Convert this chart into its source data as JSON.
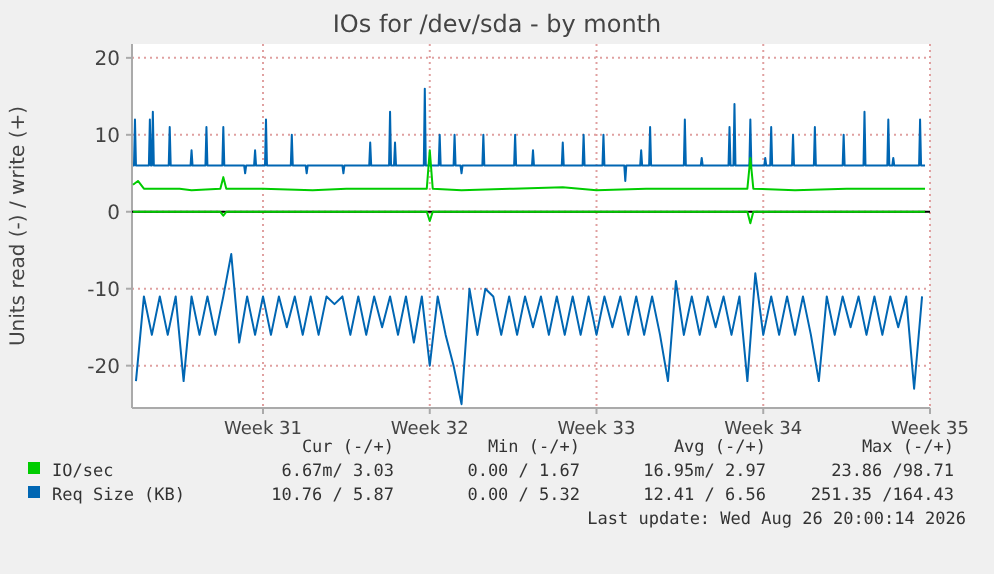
{
  "chart_data": {
    "type": "line",
    "title": "IOs for /dev/sda - by month",
    "ylabel": "Units read (-) / write (+)",
    "xlim": [
      "2026-07-21T12:00",
      "2026-08-24T00:00"
    ],
    "xticks": [
      {
        "value": "2026-07-27",
        "label": "Week 31"
      },
      {
        "value": "2026-08-03",
        "label": "Week 32"
      },
      {
        "value": "2026-08-10",
        "label": "Week 33"
      },
      {
        "value": "2026-08-17",
        "label": "Week 34"
      },
      {
        "value": "2026-08-24",
        "label": "Week 35"
      }
    ],
    "ylim": [
      -25.5,
      21.8
    ],
    "yticks": [
      -20,
      -10,
      0,
      10,
      20
    ],
    "grid": true,
    "legend": "bottom",
    "ref_lines": [
      {
        "axis": "y",
        "value": 0,
        "color": "#000000"
      }
    ],
    "series": [
      {
        "name": "IO/sec",
        "color": "#00cc00",
        "x": [
          "2026-07-21T13:00",
          "2026-07-21T18:00",
          "2026-07-22T00:00",
          "2026-07-23T12:00",
          "2026-07-24T00:00",
          "2026-07-25T05:00",
          "2026-07-25T08:00",
          "2026-07-25T11:00",
          "2026-07-27T00:00",
          "2026-07-29T02:00",
          "2026-07-30T12:00",
          "2026-08-01T16:00",
          "2026-08-02T21:00",
          "2026-08-03T00:00",
          "2026-08-03T03:00",
          "2026-08-04T08:00",
          "2026-08-06T12:00",
          "2026-08-08T14:00",
          "2026-08-10T00:00",
          "2026-08-12T02:00",
          "2026-08-14T05:00",
          "2026-08-16T08:00",
          "2026-08-16T11:00",
          "2026-08-16T14:00",
          "2026-08-18T08:00",
          "2026-08-20T12:00",
          "2026-08-22T14:00",
          "2026-08-23T19:00"
        ],
        "values": [
          3.5,
          4,
          3,
          3,
          2.8,
          3,
          4.5,
          3,
          3,
          2.8,
          3,
          3,
          3,
          8,
          3,
          2.8,
          3,
          3.2,
          2.8,
          3,
          3,
          3,
          7,
          3,
          2.8,
          3,
          3,
          3
        ]
      },
      {
        "color": "#00cc00",
        "x": [
          "2026-07-21T13:00",
          "2026-07-25T05:00",
          "2026-07-25T08:00",
          "2026-07-25T11:00",
          "2026-08-02T21:00",
          "2026-08-03T00:00",
          "2026-08-03T03:00",
          "2026-08-16T08:00",
          "2026-08-16T11:00",
          "2026-08-16T14:00",
          "2026-08-23T19:00"
        ],
        "values": [
          0,
          0,
          -0.5,
          0,
          0,
          -1.2,
          0,
          0,
          -1.5,
          0,
          0
        ]
      },
      {
        "name": "Req Size (KB)",
        "color": "#0066b3",
        "x": [
          "2026-07-21T13:00",
          "2026-07-21T14:00",
          "2026-07-21T15:00",
          "2026-07-21T16:00",
          "2026-07-22T05:00",
          "2026-07-22T06:00",
          "2026-07-22T07:00",
          "2026-07-22T08:00",
          "2026-07-22T09:00",
          "2026-07-22T10:00",
          "2026-07-23T01:00",
          "2026-07-23T02:00",
          "2026-07-23T03:00",
          "2026-07-23T23:00",
          "2026-07-24T00:00",
          "2026-07-24T01:00",
          "2026-07-24T14:00",
          "2026-07-24T15:00",
          "2026-07-24T16:00",
          "2026-07-25T07:00",
          "2026-07-25T08:00",
          "2026-07-25T09:00",
          "2026-07-26T05:00",
          "2026-07-26T06:00",
          "2026-07-26T07:00",
          "2026-07-26T15:00",
          "2026-07-26T16:00",
          "2026-07-26T17:00",
          "2026-07-27T02:00",
          "2026-07-27T03:00",
          "2026-07-27T04:00",
          "2026-07-28T04:00",
          "2026-07-28T05:00",
          "2026-07-28T06:00",
          "2026-07-28T19:00",
          "2026-07-28T20:00",
          "2026-07-28T21:00",
          "2026-07-30T08:00",
          "2026-07-30T09:00",
          "2026-07-30T10:00",
          "2026-07-31T11:00",
          "2026-07-31T12:00",
          "2026-07-31T13:00",
          "2026-08-01T07:00",
          "2026-08-01T08:00",
          "2026-08-01T09:00",
          "2026-08-01T12:00",
          "2026-08-01T13:00",
          "2026-08-01T14:00",
          "2026-08-02T18:00",
          "2026-08-02T19:00",
          "2026-08-02T20:00",
          "2026-08-03T09:00",
          "2026-08-03T10:00",
          "2026-08-03T11:00",
          "2026-08-04T00:00",
          "2026-08-04T01:00",
          "2026-08-04T02:00",
          "2026-08-04T07:00",
          "2026-08-04T08:00",
          "2026-08-04T09:00",
          "2026-08-05T05:00",
          "2026-08-05T06:00",
          "2026-08-05T07:00",
          "2026-08-06T13:00",
          "2026-08-06T14:00",
          "2026-08-06T15:00",
          "2026-08-07T07:00",
          "2026-08-07T08:00",
          "2026-08-07T09:00",
          "2026-08-08T13:00",
          "2026-08-08T14:00",
          "2026-08-08T15:00",
          "2026-08-09T10:00",
          "2026-08-09T11:00",
          "2026-08-09T12:00",
          "2026-08-10T06:00",
          "2026-08-10T07:00",
          "2026-08-10T08:00",
          "2026-08-11T04:00",
          "2026-08-11T05:00",
          "2026-08-11T06:00",
          "2026-08-11T20:00",
          "2026-08-11T21:00",
          "2026-08-11T22:00",
          "2026-08-12T05:00",
          "2026-08-12T06:00",
          "2026-08-12T07:00",
          "2026-08-13T16:00",
          "2026-08-13T17:00",
          "2026-08-13T18:00",
          "2026-08-14T09:00",
          "2026-08-14T10:00",
          "2026-08-14T11:00",
          "2026-08-15T13:00",
          "2026-08-15T14:00",
          "2026-08-15T15:00",
          "2026-08-15T18:00",
          "2026-08-15T19:00",
          "2026-08-15T20:00",
          "2026-08-16T10:00",
          "2026-08-16T11:00",
          "2026-08-16T12:00",
          "2026-08-17T01:00",
          "2026-08-17T02:00",
          "2026-08-17T03:00",
          "2026-08-17T07:00",
          "2026-08-17T08:00",
          "2026-08-17T09:00",
          "2026-08-18T05:00",
          "2026-08-18T06:00",
          "2026-08-18T07:00",
          "2026-08-19T03:00",
          "2026-08-19T04:00",
          "2026-08-19T05:00",
          "2026-08-20T08:00",
          "2026-08-20T09:00",
          "2026-08-20T10:00",
          "2026-08-21T05:00",
          "2026-08-21T06:00",
          "2026-08-21T07:00",
          "2026-08-22T05:00",
          "2026-08-22T06:00",
          "2026-08-22T07:00",
          "2026-08-22T10:00",
          "2026-08-22T11:00",
          "2026-08-22T12:00",
          "2026-08-23T13:00",
          "2026-08-23T14:00",
          "2026-08-23T15:00",
          "2026-08-23T19:00"
        ],
        "values": [
          6,
          6,
          12,
          6,
          6,
          12,
          6,
          6,
          13,
          6,
          6,
          11,
          6,
          6,
          8,
          6,
          6,
          11,
          6,
          6,
          11,
          6,
          6,
          5,
          6,
          6,
          8,
          6,
          6,
          12,
          6,
          6,
          10,
          6,
          6,
          5,
          6,
          6,
          5,
          6,
          6,
          9,
          6,
          6,
          13,
          6,
          6,
          9,
          6,
          6,
          16,
          6,
          6,
          10,
          6,
          6,
          10,
          6,
          6,
          5,
          6,
          6,
          10,
          6,
          6,
          10,
          6,
          6,
          8,
          6,
          6,
          9,
          6,
          6,
          10,
          6,
          6,
          10,
          6,
          6,
          4,
          6,
          6,
          8,
          6,
          6,
          11,
          6,
          6,
          12,
          6,
          6,
          7,
          6,
          6,
          11,
          6,
          6,
          14,
          6,
          6,
          12,
          6,
          6,
          7,
          6,
          6,
          11,
          6,
          6,
          10,
          6,
          6,
          11,
          6,
          6,
          10,
          6,
          6,
          13,
          6,
          6,
          12,
          6,
          6,
          7,
          6,
          6,
          12,
          6,
          6
        ]
      },
      {
        "color": "#0066b3",
        "x": [
          "2026-07-21T16:00",
          "2026-07-22T00:00",
          "2026-07-22T08:00",
          "2026-07-22T16:00",
          "2026-07-23T00:00",
          "2026-07-23T08:00",
          "2026-07-23T16:00",
          "2026-07-24T00:00",
          "2026-07-24T08:00",
          "2026-07-24T16:00",
          "2026-07-25T00:00",
          "2026-07-25T08:00",
          "2026-07-25T16:00",
          "2026-07-26T00:00",
          "2026-07-26T08:00",
          "2026-07-26T16:00",
          "2026-07-27T00:00",
          "2026-07-27T08:00",
          "2026-07-27T16:00",
          "2026-07-28T00:00",
          "2026-07-28T08:00",
          "2026-07-28T16:00",
          "2026-07-29T00:00",
          "2026-07-29T08:00",
          "2026-07-29T16:00",
          "2026-07-30T00:00",
          "2026-07-30T08:00",
          "2026-07-30T16:00",
          "2026-07-31T00:00",
          "2026-07-31T08:00",
          "2026-07-31T16:00",
          "2026-08-01T00:00",
          "2026-08-01T08:00",
          "2026-08-01T16:00",
          "2026-08-02T00:00",
          "2026-08-02T08:00",
          "2026-08-02T16:00",
          "2026-08-03T00:00",
          "2026-08-03T08:00",
          "2026-08-03T16:00",
          "2026-08-04T00:00",
          "2026-08-04T08:00",
          "2026-08-04T16:00",
          "2026-08-05T00:00",
          "2026-08-05T08:00",
          "2026-08-05T16:00",
          "2026-08-06T00:00",
          "2026-08-06T08:00",
          "2026-08-06T16:00",
          "2026-08-07T00:00",
          "2026-08-07T08:00",
          "2026-08-07T16:00",
          "2026-08-08T00:00",
          "2026-08-08T08:00",
          "2026-08-08T16:00",
          "2026-08-09T00:00",
          "2026-08-09T08:00",
          "2026-08-09T16:00",
          "2026-08-10T00:00",
          "2026-08-10T08:00",
          "2026-08-10T16:00",
          "2026-08-11T00:00",
          "2026-08-11T08:00",
          "2026-08-11T16:00",
          "2026-08-12T00:00",
          "2026-08-12T08:00",
          "2026-08-12T16:00",
          "2026-08-13T00:00",
          "2026-08-13T08:00",
          "2026-08-13T16:00",
          "2026-08-14T00:00",
          "2026-08-14T08:00",
          "2026-08-14T16:00",
          "2026-08-15T00:00",
          "2026-08-15T08:00",
          "2026-08-15T16:00",
          "2026-08-16T00:00",
          "2026-08-16T08:00",
          "2026-08-16T16:00",
          "2026-08-17T00:00",
          "2026-08-17T08:00",
          "2026-08-17T16:00",
          "2026-08-18T00:00",
          "2026-08-18T08:00",
          "2026-08-18T16:00",
          "2026-08-19T00:00",
          "2026-08-19T08:00",
          "2026-08-19T16:00",
          "2026-08-20T00:00",
          "2026-08-20T08:00",
          "2026-08-20T16:00",
          "2026-08-21T00:00",
          "2026-08-21T08:00",
          "2026-08-21T16:00",
          "2026-08-22T00:00",
          "2026-08-22T08:00",
          "2026-08-22T16:00",
          "2026-08-23T00:00",
          "2026-08-23T08:00",
          "2026-08-23T16:00"
        ],
        "values": [
          -22,
          -11,
          -16,
          -11,
          -16,
          -11,
          -22,
          -11,
          -16,
          -11,
          -16,
          -11,
          -5.5,
          -17,
          -11,
          -16,
          -11,
          -16,
          -11,
          -15,
          -11,
          -16,
          -11,
          -16,
          -11,
          -12,
          -11,
          -16,
          -11,
          -16,
          -11,
          -15,
          -11,
          -16,
          -11,
          -17,
          -11,
          -20,
          -11,
          -16,
          -20,
          -25,
          -10,
          -16,
          -10,
          -11,
          -16,
          -11,
          -16,
          -11,
          -15,
          -11,
          -16,
          -11,
          -16,
          -11,
          -16,
          -11,
          -16,
          -11,
          -15,
          -11,
          -16,
          -11,
          -16,
          -11,
          -16,
          -22,
          -9,
          -16,
          -11,
          -16,
          -11,
          -15,
          -11,
          -16,
          -11,
          -22,
          -8,
          -16,
          -11,
          -16,
          -11,
          -16,
          -11,
          -16,
          -22,
          -11,
          -16,
          -11,
          -15,
          -11,
          -16,
          -11,
          -16,
          -11,
          -15,
          -11,
          -23,
          -11
        ]
      }
    ],
    "annotations": [
      "Cur (-/+)",
      "Min (-/+)",
      "Avg (-/+)",
      "Max (-/+)",
      "6.67m/ 3.03",
      "0.00 / 1.67",
      "16.95m/ 2.97",
      "23.86 /98.71",
      "10.76 / 5.87",
      "0.00 / 5.32",
      "12.41 / 6.56",
      "251.35 /164.43",
      "Last update: Wed Aug 26 20:00:14 2026"
    ]
  }
}
